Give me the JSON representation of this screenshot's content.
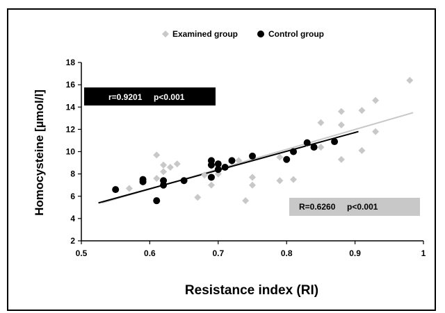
{
  "chart_data": {
    "type": "scatter",
    "xlabel": "Resistance index (RI)",
    "ylabel": "Homocysteine [µmol/l]",
    "xlim": [
      0.5,
      1
    ],
    "ylim": [
      2,
      18
    ],
    "x_ticks": [
      "0.5",
      "0.6",
      "0.7",
      "0.8",
      "0.9",
      "1"
    ],
    "y_ticks": [
      "2",
      "4",
      "6",
      "8",
      "10",
      "12",
      "14",
      "16",
      "18"
    ],
    "grid": false,
    "legend_position": "top-center",
    "series": [
      {
        "name": "Examined group",
        "color": "#c8c8c8",
        "marker": "diamond",
        "points": [
          [
            0.57,
            6.7
          ],
          [
            0.59,
            7.3
          ],
          [
            0.61,
            9.7
          ],
          [
            0.61,
            7.6
          ],
          [
            0.62,
            8.8
          ],
          [
            0.62,
            8.2
          ],
          [
            0.63,
            8.6
          ],
          [
            0.64,
            8.9
          ],
          [
            0.65,
            7.4
          ],
          [
            0.67,
            5.9
          ],
          [
            0.68,
            7.9
          ],
          [
            0.69,
            7.0
          ],
          [
            0.69,
            8.7
          ],
          [
            0.7,
            8.0
          ],
          [
            0.72,
            9.1
          ],
          [
            0.73,
            9.2
          ],
          [
            0.74,
            5.6
          ],
          [
            0.75,
            7.7
          ],
          [
            0.75,
            7.0
          ],
          [
            0.79,
            9.5
          ],
          [
            0.79,
            7.4
          ],
          [
            0.81,
            7.5
          ],
          [
            0.83,
            10.7
          ],
          [
            0.85,
            12.6
          ],
          [
            0.85,
            10.4
          ],
          [
            0.88,
            13.6
          ],
          [
            0.88,
            12.4
          ],
          [
            0.88,
            9.3
          ],
          [
            0.91,
            13.7
          ],
          [
            0.91,
            10.1
          ],
          [
            0.93,
            14.6
          ],
          [
            0.93,
            11.8
          ],
          [
            0.98,
            16.4
          ]
        ],
        "regression": {
          "x": [
            0.53,
            0.985
          ],
          "y": [
            5.4,
            13.5
          ]
        }
      },
      {
        "name": "Control group",
        "color": "#000000",
        "marker": "circle",
        "points": [
          [
            0.55,
            6.6
          ],
          [
            0.59,
            7.5
          ],
          [
            0.59,
            7.3
          ],
          [
            0.61,
            5.6
          ],
          [
            0.62,
            7.4
          ],
          [
            0.62,
            7.0
          ],
          [
            0.65,
            7.4
          ],
          [
            0.69,
            9.2
          ],
          [
            0.69,
            8.8
          ],
          [
            0.69,
            7.7
          ],
          [
            0.7,
            8.9
          ],
          [
            0.7,
            8.4
          ],
          [
            0.71,
            8.6
          ],
          [
            0.72,
            9.2
          ],
          [
            0.75,
            9.6
          ],
          [
            0.8,
            9.3
          ],
          [
            0.81,
            10.0
          ],
          [
            0.83,
            10.8
          ],
          [
            0.84,
            10.4
          ],
          [
            0.87,
            10.9
          ]
        ],
        "regression": {
          "x": [
            0.525,
            0.905
          ],
          "y": [
            5.4,
            11.8
          ]
        }
      }
    ],
    "annotations": {
      "control_stat": {
        "text": "r=0.9201     p<0.001",
        "bg": "#000000",
        "fg": "#ffffff"
      },
      "examined_stat": {
        "text": "R=0.6260     p<0.001",
        "bg": "#c8c8c8",
        "fg": "#000000"
      }
    }
  }
}
